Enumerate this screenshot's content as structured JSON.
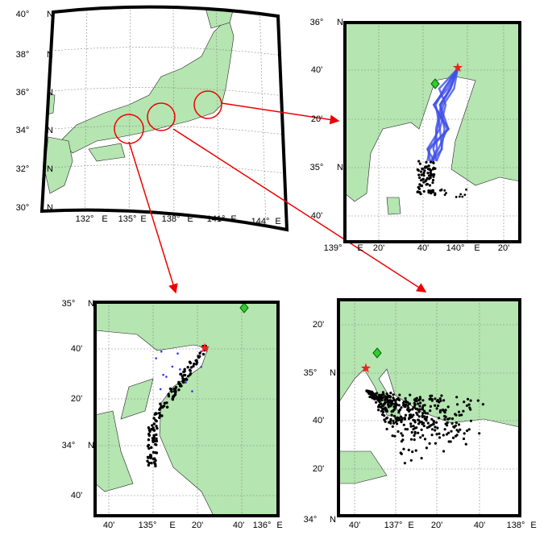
{
  "maps": [
    {
      "lat_labels": [
        {
          "deg": "40°",
          "hem": "N"
        },
        {
          "deg": "38°",
          "hem": "N"
        },
        {
          "deg": "36°",
          "hem": "N"
        },
        {
          "deg": "34°",
          "hem": "N"
        },
        {
          "deg": "32°",
          "hem": "N"
        },
        {
          "deg": "30°",
          "hem": "N"
        }
      ],
      "lon_labels": [
        {
          "deg": "132°",
          "hem": "E"
        },
        {
          "deg": "135°",
          "hem": "E"
        },
        {
          "deg": "138°",
          "hem": "E"
        },
        {
          "deg": "141°",
          "hem": "E"
        },
        {
          "deg": "144°",
          "hem": "E"
        }
      ]
    },
    {
      "lat_labels": [
        {
          "deg": "36°",
          "hem": "N"
        },
        {
          "deg": "40'"
        },
        {
          "deg": "20'"
        },
        {
          "deg": "35°",
          "hem": "N"
        },
        {
          "deg": "40'"
        }
      ],
      "lon_labels": [
        {
          "deg": "139°",
          "hem": "E"
        },
        {
          "deg": "20'"
        },
        {
          "deg": "40'"
        },
        {
          "deg": "140°",
          "hem": "E"
        },
        {
          "deg": "20'"
        }
      ]
    },
    {
      "lat_labels": [
        {
          "deg": "35°",
          "hem": "N"
        },
        {
          "deg": "40'"
        },
        {
          "deg": "20'"
        },
        {
          "deg": "34°",
          "hem": "N"
        },
        {
          "deg": "40'"
        }
      ],
      "lon_labels": [
        {
          "deg": "40'"
        },
        {
          "deg": "135°",
          "hem": "E"
        },
        {
          "deg": "20'"
        },
        {
          "deg": "40'"
        },
        {
          "deg": "136°",
          "hem": "E"
        }
      ]
    },
    {
      "lat_labels": [
        {
          "deg": "20'"
        },
        {
          "deg": "35°",
          "hem": "N"
        },
        {
          "deg": "40'"
        },
        {
          "deg": "20'"
        },
        {
          "deg": "34°",
          "hem": "N"
        }
      ],
      "lon_labels": [
        {
          "deg": "40'"
        },
        {
          "deg": "137°",
          "hem": "E"
        },
        {
          "deg": "20'"
        },
        {
          "deg": "40'"
        },
        {
          "deg": "138°",
          "hem": "E"
        }
      ]
    }
  ]
}
